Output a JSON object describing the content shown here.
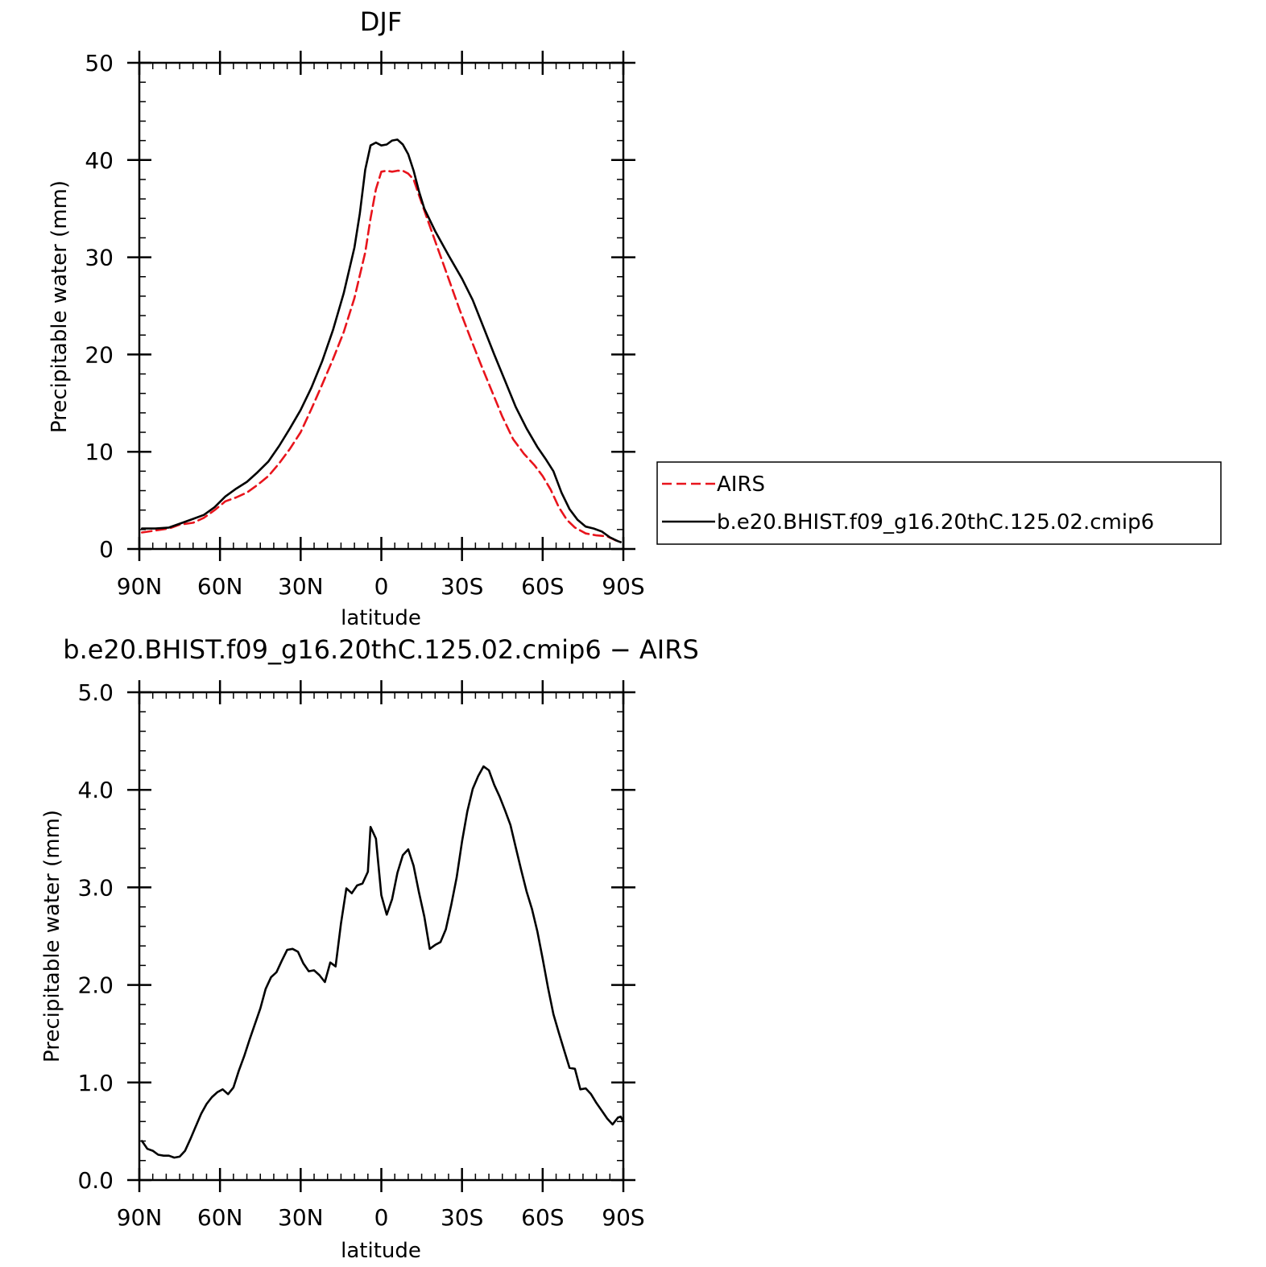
{
  "colors": {
    "model": "#000000",
    "obs": "#e8141c"
  },
  "chart_data": [
    {
      "type": "line",
      "title": "DJF",
      "xlabel": "latitude",
      "ylabel": "Precipitable water (mm)",
      "xlim": [
        90,
        -90
      ],
      "ylim": [
        0,
        50
      ],
      "xticks": [
        {
          "value": 90,
          "label": "90N"
        },
        {
          "value": 60,
          "label": "60N"
        },
        {
          "value": 30,
          "label": "30N"
        },
        {
          "value": 0,
          "label": "0"
        },
        {
          "value": -30,
          "label": "30S"
        },
        {
          "value": -60,
          "label": "60S"
        },
        {
          "value": -90,
          "label": "90S"
        }
      ],
      "yticks": [
        {
          "value": 0,
          "label": "0"
        },
        {
          "value": 10,
          "label": "10"
        },
        {
          "value": 20,
          "label": "20"
        },
        {
          "value": 30,
          "label": "30"
        },
        {
          "value": 40,
          "label": "40"
        },
        {
          "value": 50,
          "label": "50"
        }
      ],
      "legend_position": "right",
      "series": [
        {
          "name": "AIRS",
          "style": "dashed",
          "color": "#e8141c",
          "points": [
            [
              89,
              1.7
            ],
            [
              84,
              1.9
            ],
            [
              79,
              2.1
            ],
            [
              75,
              2.5
            ],
            [
              70,
              2.7
            ],
            [
              66,
              3.2
            ],
            [
              62,
              4.0
            ],
            [
              58,
              4.9
            ],
            [
              54,
              5.3
            ],
            [
              50,
              5.8
            ],
            [
              46,
              6.6
            ],
            [
              42,
              7.5
            ],
            [
              38,
              8.8
            ],
            [
              34,
              10.3
            ],
            [
              30,
              12.0
            ],
            [
              26,
              14.4
            ],
            [
              22,
              16.9
            ],
            [
              18,
              19.5
            ],
            [
              14,
              22.3
            ],
            [
              10,
              25.8
            ],
            [
              6,
              30.5
            ],
            [
              4,
              34.0
            ],
            [
              2,
              37.0
            ],
            [
              0,
              38.8
            ],
            [
              -2,
              38.9
            ],
            [
              -4,
              38.8
            ],
            [
              -6,
              38.9
            ],
            [
              -8,
              38.9
            ],
            [
              -10,
              38.6
            ],
            [
              -12,
              38.0
            ],
            [
              -14,
              36.4
            ],
            [
              -17,
              34.0
            ],
            [
              -21,
              30.9
            ],
            [
              -25,
              27.8
            ],
            [
              -29,
              24.7
            ],
            [
              -33,
              21.8
            ],
            [
              -37,
              19.0
            ],
            [
              -41,
              16.3
            ],
            [
              -45,
              13.6
            ],
            [
              -49,
              11.3
            ],
            [
              -53,
              9.8
            ],
            [
              -57,
              8.6
            ],
            [
              -60,
              7.5
            ],
            [
              -63,
              6.1
            ],
            [
              -66,
              4.3
            ],
            [
              -69,
              3.0
            ],
            [
              -72,
              2.2
            ],
            [
              -76,
              1.6
            ],
            [
              -80,
              1.4
            ],
            [
              -84,
              1.3
            ],
            [
              -87,
              0.9
            ],
            [
              -89,
              0.7
            ]
          ]
        },
        {
          "name": "b.e20.BHIST.f09_g16.20thC.125.02.cmip6",
          "style": "solid",
          "color": "#000000",
          "points": [
            [
              89,
              2.1
            ],
            [
              84,
              2.1
            ],
            [
              79,
              2.2
            ],
            [
              75,
              2.6
            ],
            [
              70,
              3.1
            ],
            [
              66,
              3.5
            ],
            [
              62,
              4.3
            ],
            [
              58,
              5.4
            ],
            [
              54,
              6.2
            ],
            [
              50,
              6.9
            ],
            [
              46,
              7.9
            ],
            [
              42,
              9.0
            ],
            [
              38,
              10.6
            ],
            [
              34,
              12.4
            ],
            [
              30,
              14.3
            ],
            [
              26,
              16.6
            ],
            [
              22,
              19.3
            ],
            [
              18,
              22.5
            ],
            [
              14,
              26.3
            ],
            [
              10,
              31.0
            ],
            [
              8,
              34.5
            ],
            [
              6,
              39.0
            ],
            [
              4,
              41.5
            ],
            [
              2,
              41.8
            ],
            [
              0,
              41.5
            ],
            [
              -2,
              41.6
            ],
            [
              -4,
              42.0
            ],
            [
              -6,
              42.1
            ],
            [
              -8,
              41.6
            ],
            [
              -10,
              40.6
            ],
            [
              -12,
              38.9
            ],
            [
              -14,
              36.8
            ],
            [
              -16,
              35.0
            ],
            [
              -20,
              32.7
            ],
            [
              -25,
              30.2
            ],
            [
              -30,
              27.8
            ],
            [
              -34,
              25.6
            ],
            [
              -38,
              22.8
            ],
            [
              -42,
              20.0
            ],
            [
              -46,
              17.3
            ],
            [
              -50,
              14.6
            ],
            [
              -54,
              12.4
            ],
            [
              -58,
              10.5
            ],
            [
              -61,
              9.3
            ],
            [
              -64,
              8.0
            ],
            [
              -67,
              5.8
            ],
            [
              -70,
              4.1
            ],
            [
              -73,
              3.0
            ],
            [
              -76,
              2.3
            ],
            [
              -79,
              2.1
            ],
            [
              -82,
              1.8
            ],
            [
              -85,
              1.2
            ],
            [
              -88,
              0.8
            ],
            [
              -89,
              0.7
            ]
          ]
        }
      ]
    },
    {
      "type": "line",
      "title": "b.e20.BHIST.f09_g16.20thC.125.02.cmip6 − AIRS",
      "xlabel": "latitude",
      "ylabel": "Precipitable water (mm)",
      "xlim": [
        90,
        -90
      ],
      "ylim": [
        0,
        5
      ],
      "xticks": [
        {
          "value": 90,
          "label": "90N"
        },
        {
          "value": 60,
          "label": "60N"
        },
        {
          "value": 30,
          "label": "30N"
        },
        {
          "value": 0,
          "label": "0"
        },
        {
          "value": -30,
          "label": "30S"
        },
        {
          "value": -60,
          "label": "60S"
        },
        {
          "value": -90,
          "label": "90S"
        }
      ],
      "yticks": [
        {
          "value": 0,
          "label": "0.0"
        },
        {
          "value": 1,
          "label": "1.0"
        },
        {
          "value": 2,
          "label": "2.0"
        },
        {
          "value": 3,
          "label": "3.0"
        },
        {
          "value": 4,
          "label": "4.0"
        },
        {
          "value": 5,
          "label": "5.0"
        }
      ],
      "series": [
        {
          "style": "solid",
          "color": "#000000",
          "points": [
            [
              89,
              0.4
            ],
            [
              87,
              0.32
            ],
            [
              85,
              0.3
            ],
            [
              83,
              0.26
            ],
            [
              81,
              0.25
            ],
            [
              79,
              0.25
            ],
            [
              77,
              0.23
            ],
            [
              75,
              0.24
            ],
            [
              73,
              0.3
            ],
            [
              71,
              0.42
            ],
            [
              69,
              0.55
            ],
            [
              67,
              0.68
            ],
            [
              65,
              0.78
            ],
            [
              63,
              0.85
            ],
            [
              61,
              0.9
            ],
            [
              59,
              0.93
            ],
            [
              57,
              0.88
            ],
            [
              55,
              0.95
            ],
            [
              53,
              1.12
            ],
            [
              51,
              1.27
            ],
            [
              49,
              1.44
            ],
            [
              47,
              1.6
            ],
            [
              45,
              1.76
            ],
            [
              43,
              1.96
            ],
            [
              41,
              2.08
            ],
            [
              39,
              2.13
            ],
            [
              37,
              2.25
            ],
            [
              35,
              2.36
            ],
            [
              33,
              2.37
            ],
            [
              31,
              2.34
            ],
            [
              29,
              2.22
            ],
            [
              27,
              2.14
            ],
            [
              25,
              2.15
            ],
            [
              23,
              2.1
            ],
            [
              21,
              2.03
            ],
            [
              19,
              2.23
            ],
            [
              17,
              2.19
            ],
            [
              15,
              2.63
            ],
            [
              13,
              2.99
            ],
            [
              11,
              2.94
            ],
            [
              9,
              3.02
            ],
            [
              7,
              3.04
            ],
            [
              5,
              3.16
            ],
            [
              4,
              3.62
            ],
            [
              2,
              3.5
            ],
            [
              0,
              2.92
            ],
            [
              -2,
              2.72
            ],
            [
              -4,
              2.88
            ],
            [
              -6,
              3.15
            ],
            [
              -8,
              3.33
            ],
            [
              -10,
              3.39
            ],
            [
              -12,
              3.22
            ],
            [
              -14,
              2.95
            ],
            [
              -16,
              2.7
            ],
            [
              -18,
              2.37
            ],
            [
              -20,
              2.41
            ],
            [
              -22,
              2.44
            ],
            [
              -24,
              2.57
            ],
            [
              -26,
              2.82
            ],
            [
              -28,
              3.1
            ],
            [
              -30,
              3.47
            ],
            [
              -32,
              3.78
            ],
            [
              -34,
              4.01
            ],
            [
              -36,
              4.14
            ],
            [
              -38,
              4.24
            ],
            [
              -40,
              4.2
            ],
            [
              -42,
              4.05
            ],
            [
              -44,
              3.93
            ],
            [
              -46,
              3.79
            ],
            [
              -48,
              3.64
            ],
            [
              -50,
              3.41
            ],
            [
              -52,
              3.18
            ],
            [
              -54,
              2.96
            ],
            [
              -56,
              2.78
            ],
            [
              -58,
              2.55
            ],
            [
              -60,
              2.27
            ],
            [
              -62,
              1.97
            ],
            [
              -64,
              1.7
            ],
            [
              -66,
              1.51
            ],
            [
              -68,
              1.33
            ],
            [
              -70,
              1.15
            ],
            [
              -72,
              1.14
            ],
            [
              -74,
              0.93
            ],
            [
              -76,
              0.94
            ],
            [
              -78,
              0.88
            ],
            [
              -80,
              0.79
            ],
            [
              -82,
              0.71
            ],
            [
              -84,
              0.63
            ],
            [
              -86,
              0.57
            ],
            [
              -88,
              0.64
            ],
            [
              -89,
              0.65
            ],
            [
              -90,
              0.6
            ]
          ]
        }
      ]
    }
  ]
}
